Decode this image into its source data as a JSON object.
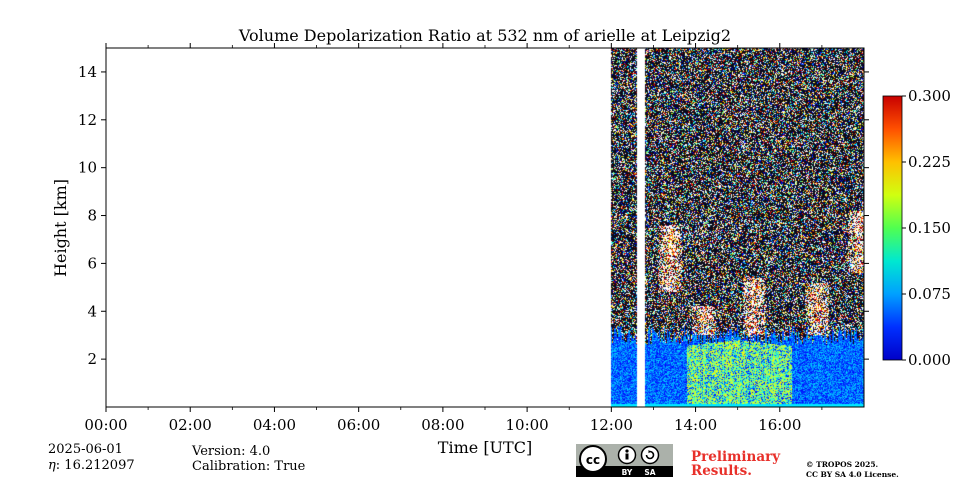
{
  "chart_data": {
    "type": "heatmap",
    "title": "Volume Depolarization Ratio at 532 nm of arielle at Leipzig2",
    "xlabel": "Time [UTC]",
    "ylabel": "Height [km]",
    "xlim": [
      0,
      18
    ],
    "ylim": [
      0,
      15
    ],
    "x_ticks": [
      {
        "value": 0,
        "label": "00:00"
      },
      {
        "value": 2,
        "label": "02:00"
      },
      {
        "value": 4,
        "label": "04:00"
      },
      {
        "value": 6,
        "label": "06:00"
      },
      {
        "value": 8,
        "label": "08:00"
      },
      {
        "value": 10,
        "label": "10:00"
      },
      {
        "value": 12,
        "label": "12:00"
      },
      {
        "value": 14,
        "label": "14:00"
      },
      {
        "value": 16,
        "label": "16:00"
      }
    ],
    "y_ticks": [
      {
        "value": 2,
        "label": "2"
      },
      {
        "value": 4,
        "label": "4"
      },
      {
        "value": 6,
        "label": "6"
      },
      {
        "value": 8,
        "label": "8"
      },
      {
        "value": 10,
        "label": "10"
      },
      {
        "value": 12,
        "label": "12"
      },
      {
        "value": 14,
        "label": "14"
      }
    ],
    "colorbar": {
      "min": 0.0,
      "max": 0.3,
      "colormap": "jet",
      "ticks": [
        {
          "value": 0.0,
          "label": "0.000"
        },
        {
          "value": 0.075,
          "label": "0.075"
        },
        {
          "value": 0.15,
          "label": "0.150"
        },
        {
          "value": 0.225,
          "label": "0.225"
        },
        {
          "value": 0.3,
          "label": "0.300"
        }
      ]
    },
    "data_segments": [
      {
        "start_hour": 12.0,
        "end_hour": 12.6
      },
      {
        "start_hour": 12.8,
        "end_hour": 18.0
      }
    ],
    "no_data_gaps": [
      {
        "start_hour": 0.0,
        "end_hour": 12.0
      },
      {
        "start_hour": 12.6,
        "end_hour": 12.8
      }
    ],
    "layers": {
      "boundary_layer_top_km": 3.0,
      "aerosol_plume": {
        "start_hour": 13.8,
        "end_hour": 16.3,
        "top_km": 2.8,
        "depolarization": 0.16
      },
      "cloud_spots": [
        {
          "hour": 13.4,
          "bottom_km": 4.8,
          "top_km": 7.6
        },
        {
          "hour": 14.2,
          "bottom_km": 3.0,
          "top_km": 4.2
        },
        {
          "hour": 15.4,
          "bottom_km": 3.0,
          "top_km": 5.4
        },
        {
          "hour": 16.9,
          "bottom_km": 3.0,
          "top_km": 5.2
        },
        {
          "hour": 17.9,
          "bottom_km": 5.6,
          "top_km": 8.2
        }
      ]
    }
  },
  "footer": {
    "date": "2025-06-01",
    "eta_symbol": "η",
    "eta_value": ": 16.212097",
    "version": "Version: 4.0",
    "calibration": "Calibration: True",
    "preliminary_line1": "Preliminary",
    "preliminary_line2": "Results.",
    "copyright_line1": "© TROPOS 2025.",
    "copyright_line2": "CC BY SA 4.0 License.",
    "license_badge": {
      "by": "BY",
      "sa": "SA"
    }
  },
  "colors": {
    "preliminary": "#e8302a",
    "badge_bg": "#abb1aa",
    "badge_dark": "#000000"
  }
}
